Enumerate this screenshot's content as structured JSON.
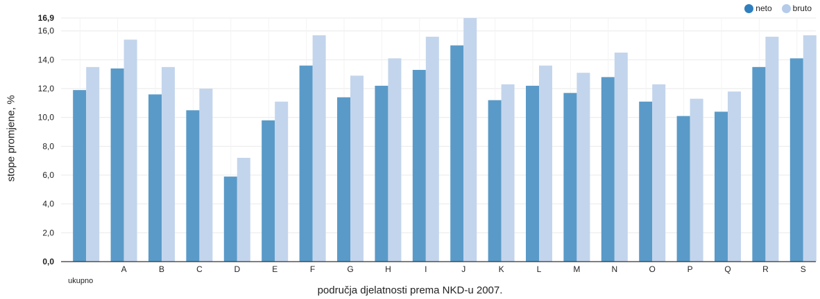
{
  "legend": {
    "neto_label": "neto",
    "bruto_label": "bruto"
  },
  "colors": {
    "neto": "#5a9ac8",
    "bruto": "#c3d5ec",
    "neto_swatch": "#2f7fbf",
    "bruto_swatch": "#b5cbe9",
    "grid": "#e9e9e9",
    "axis": "#333333"
  },
  "chart_data": {
    "type": "bar",
    "xlabel": "područja djelatnosti prema NKD-u 2007.",
    "ylabel": "stope promjene, %",
    "categories": [
      "ukupno",
      "A",
      "B",
      "C",
      "D",
      "E",
      "F",
      "G",
      "H",
      "I",
      "J",
      "K",
      "L",
      "M",
      "N",
      "O",
      "P",
      "Q",
      "R",
      "S"
    ],
    "series": [
      {
        "name": "neto",
        "values": [
          11.9,
          13.4,
          11.6,
          10.5,
          5.9,
          9.8,
          13.6,
          11.4,
          12.2,
          13.3,
          15.0,
          11.2,
          12.2,
          11.7,
          12.8,
          11.1,
          10.1,
          10.4,
          13.5,
          14.1
        ]
      },
      {
        "name": "bruto",
        "values": [
          13.5,
          15.4,
          13.5,
          12.0,
          7.2,
          11.1,
          15.7,
          12.9,
          14.1,
          15.6,
          16.9,
          12.3,
          13.6,
          13.1,
          14.5,
          12.3,
          11.3,
          11.8,
          15.6,
          15.7
        ]
      }
    ],
    "ylim": [
      0,
      16.9
    ],
    "yticks": [
      "0,0",
      "2,0",
      "4,0",
      "6,0",
      "8,0",
      "10,0",
      "12,0",
      "14,0",
      "16,0",
      "16,9"
    ],
    "ytick_values": [
      0,
      2,
      4,
      6,
      8,
      10,
      12,
      14,
      16,
      16.9
    ],
    "grid": true,
    "legend_position": "top-right"
  }
}
